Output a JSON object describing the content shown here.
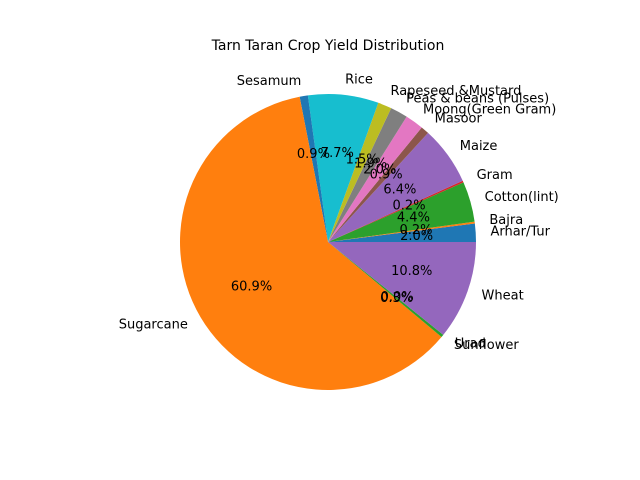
{
  "chart_data": {
    "type": "pie",
    "title": "Tarn Taran Crop Yield Distribution",
    "start_angle_deg": 0,
    "direction": "counterclockwise",
    "slices": [
      {
        "label": "Arhar/Tur",
        "value": 2.0,
        "pct_label": "2.0%",
        "color": "#1f77b4"
      },
      {
        "label": "Bajra",
        "value": 0.2,
        "pct_label": "0.2%",
        "color": "#ff7f0e"
      },
      {
        "label": "Cotton(lint)",
        "value": 4.4,
        "pct_label": "4.4%",
        "color": "#2ca02c"
      },
      {
        "label": "Gram",
        "value": 0.2,
        "pct_label": "0.2%",
        "color": "#d62728"
      },
      {
        "label": "Maize",
        "value": 6.4,
        "pct_label": "6.4%",
        "color": "#9467bd"
      },
      {
        "label": "Masoor",
        "value": 0.9,
        "pct_label": "0.9%",
        "color": "#8c564b"
      },
      {
        "label": "Moong(Green Gram)",
        "value": 2.0,
        "pct_label": "2.0%",
        "color": "#e377c2"
      },
      {
        "label": "Peas & beans (Pulses)",
        "value": 1.9,
        "pct_label": "1.9%",
        "color": "#7f7f7f"
      },
      {
        "label": "Rapeseed &Mustard",
        "value": 1.5,
        "pct_label": "1.5%",
        "color": "#bcbd22"
      },
      {
        "label": "Rice",
        "value": 7.7,
        "pct_label": "7.7%",
        "color": "#17becf"
      },
      {
        "label": "Sesamum",
        "value": 0.9,
        "pct_label": "0.9%",
        "color": "#1f77b4"
      },
      {
        "label": "Sugarcane",
        "value": 60.9,
        "pct_label": "60.9%",
        "color": "#ff7f0e"
      },
      {
        "label": "Sunflower",
        "value": 0.3,
        "pct_label": "0.3%",
        "color": "#2ca02c"
      },
      {
        "label": "Urad",
        "value": 0.0,
        "pct_label": "0.0%",
        "color": "#d62728"
      },
      {
        "label": "Wheat",
        "value": 10.8,
        "pct_label": "10.8%",
        "color": "#9467bd"
      }
    ]
  }
}
